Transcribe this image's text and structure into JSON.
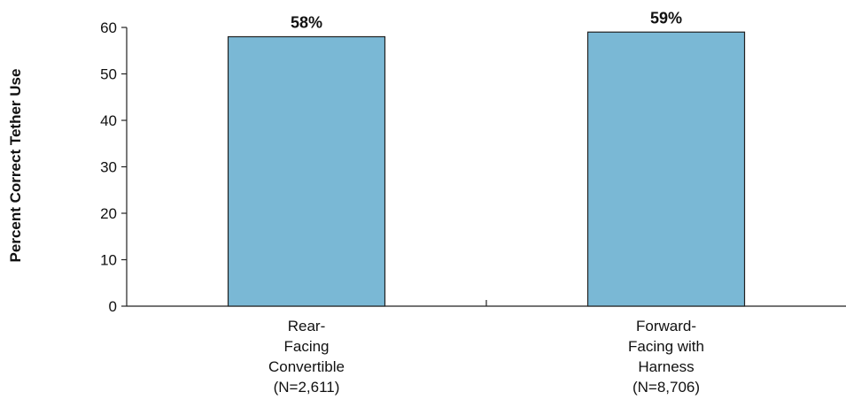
{
  "chart_data": {
    "type": "bar",
    "title": "",
    "xlabel": "",
    "ylabel": "Percent Correct Tether Use",
    "ylim": [
      0,
      60
    ],
    "yticks": [
      0,
      10,
      20,
      30,
      40,
      50,
      60
    ],
    "grid": false,
    "bar_color": "#7AB8D5",
    "bar_edge_color": "#222222",
    "categories": [
      [
        "Rear-",
        "Facing",
        "Convertible",
        "(N=2,611)"
      ],
      [
        "Forward-",
        "Facing with",
        "Harness",
        "(N=8,706)"
      ]
    ],
    "values": [
      58,
      59
    ],
    "data_labels": [
      "58%",
      "59%"
    ]
  }
}
